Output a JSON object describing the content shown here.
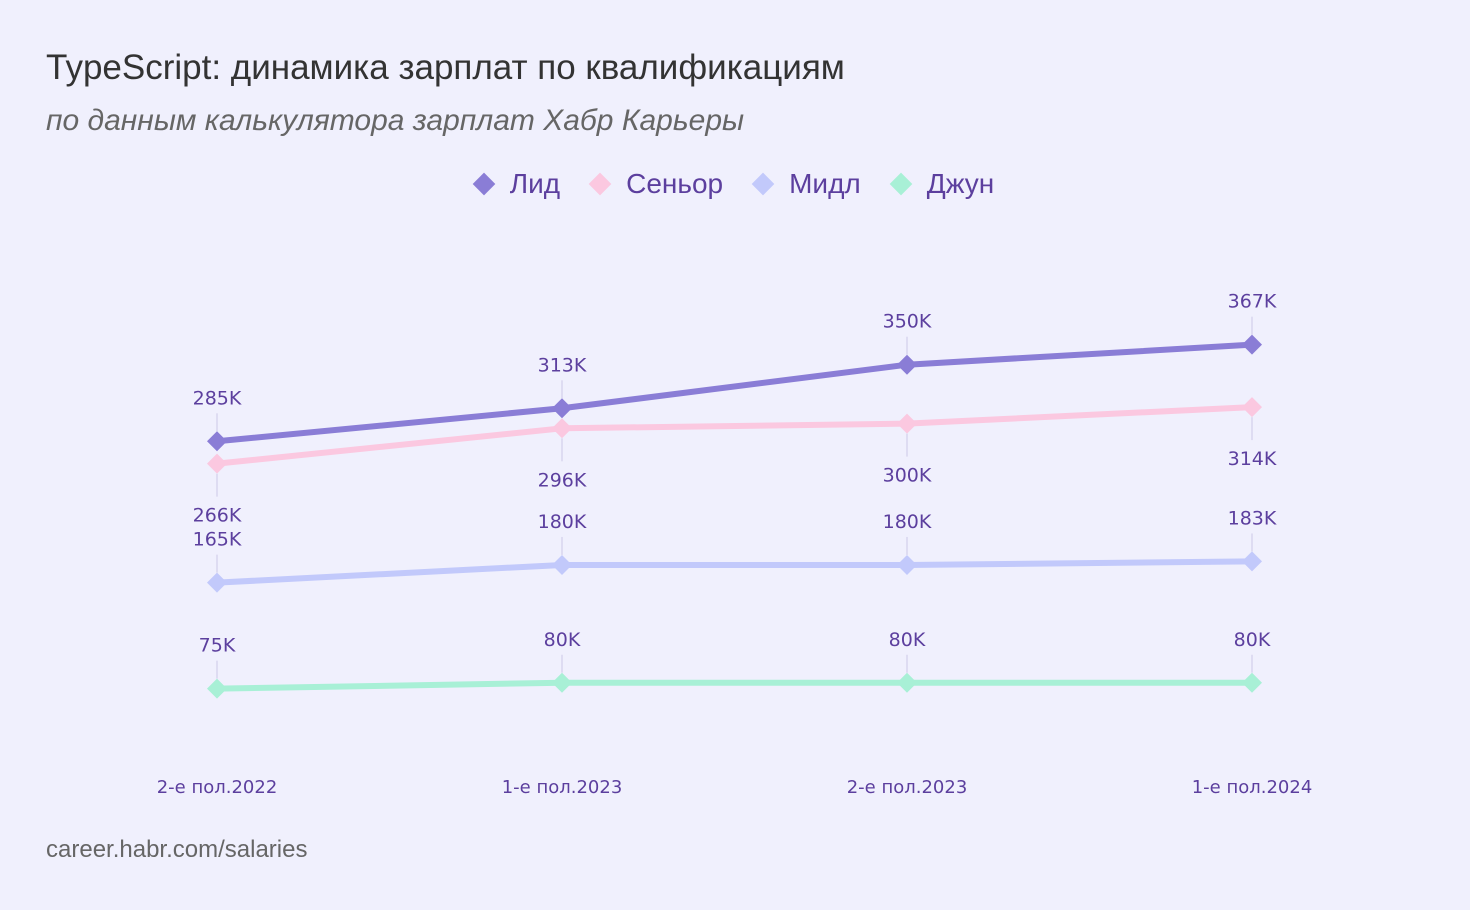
{
  "title": "TypeScript: динамика зарплат по квалификациям",
  "subtitle": "по данным калькулятора зарплат Хабр Карьеры",
  "source": "career.habr.com/salaries",
  "chart_data": {
    "type": "line",
    "x": [
      "2-е пол.2022",
      "1-е пол.2023",
      "2-е пол.2023",
      "1-е пол.2024"
    ],
    "series": [
      {
        "name": "Лид",
        "values": [
          285,
          313,
          350,
          367
        ],
        "labels": [
          "285K",
          "313K",
          "350K",
          "367K"
        ],
        "label_pos": [
          "above",
          "above",
          "above",
          "above"
        ],
        "color": "#8a7dd6"
      },
      {
        "name": "Сеньор",
        "values": [
          266,
          296,
          300,
          314
        ],
        "labels": [
          "266K",
          "296K",
          "300K",
          "314K"
        ],
        "label_pos": [
          "below",
          "below",
          "below",
          "below"
        ],
        "color": "#fbc8e0"
      },
      {
        "name": "Мидл",
        "values": [
          165,
          180,
          180,
          183
        ],
        "labels": [
          "165K",
          "180K",
          "180K",
          "183K"
        ],
        "label_pos": [
          "above",
          "above",
          "above",
          "above"
        ],
        "color": "#c2c9fb"
      },
      {
        "name": "Джун",
        "values": [
          75,
          80,
          80,
          80
        ],
        "labels": [
          "75K",
          "80K",
          "80K",
          "80K"
        ],
        "label_pos": [
          "above",
          "above",
          "above",
          "above"
        ],
        "color": "#a8f0d6"
      }
    ],
    "ylim": [
      0,
      440
    ],
    "grid": false,
    "legend": "top-center"
  }
}
